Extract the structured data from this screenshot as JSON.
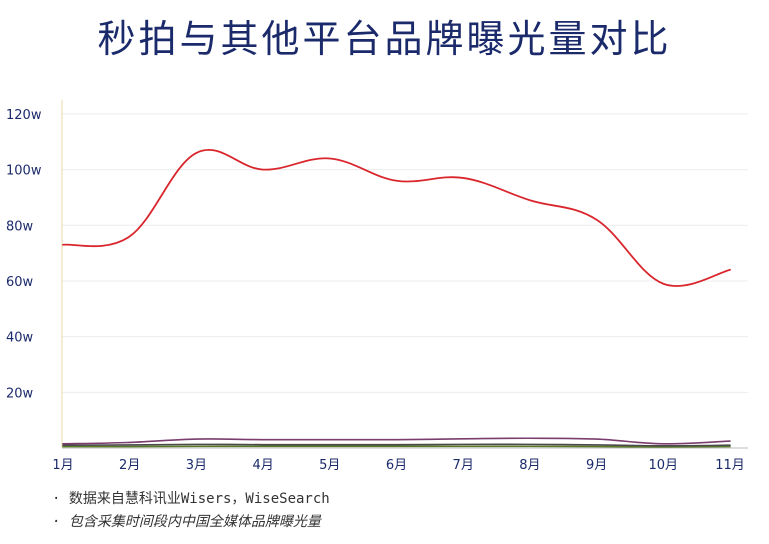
{
  "chart_data": {
    "type": "line",
    "title": "秒拍与其他平台品牌曝光量对比",
    "xlabel": "",
    "ylabel": "",
    "categories": [
      "1月",
      "2月",
      "3月",
      "4月",
      "5月",
      "6月",
      "7月",
      "8月",
      "9月",
      "10月",
      "11月"
    ],
    "y_ticks": [
      "20w",
      "40w",
      "60w",
      "80w",
      "100w",
      "120w"
    ],
    "ylim": [
      0,
      125
    ],
    "grid": true,
    "series": [
      {
        "color": "#d9262c",
        "values": [
          73,
          76,
          106,
          100,
          104,
          96,
          97,
          89,
          82,
          59,
          64
        ]
      },
      {
        "color": "#7a3d6e",
        "values": [
          1.5,
          2,
          3.2,
          3,
          3,
          3,
          3.3,
          3.5,
          3.2,
          1.5,
          2.5
        ]
      },
      {
        "color": "#4a4a4a",
        "values": [
          1,
          1.1,
          1.3,
          1.2,
          1.2,
          1.2,
          1.3,
          1.3,
          1.1,
          0.8,
          1
        ]
      },
      {
        "color": "#5a7a2a",
        "values": [
          0.5,
          0.5,
          0.6,
          0.6,
          0.6,
          0.6,
          0.6,
          0.6,
          0.5,
          0.4,
          0.5
        ]
      }
    ]
  },
  "notes": [
    "· 数据来自慧科讯业Wisers，WiseSearch",
    "· 包含采集时间段内中国全媒体品牌曝光量"
  ]
}
